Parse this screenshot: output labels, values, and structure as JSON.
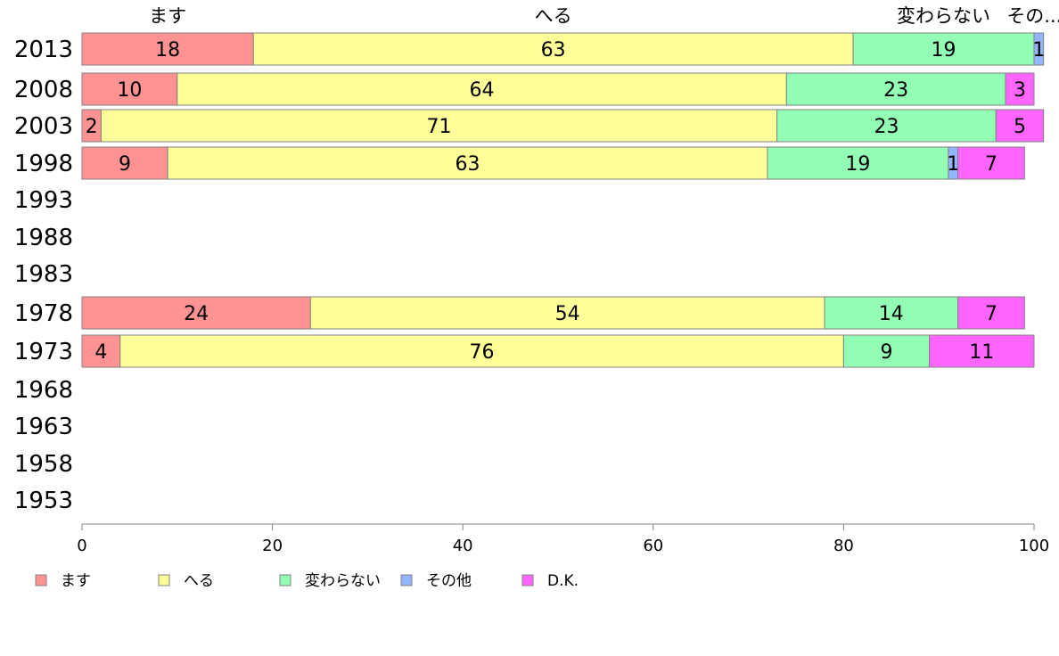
{
  "chart_data": {
    "type": "bar",
    "orientation": "horizontal",
    "stacked": true,
    "categories": [
      "2013",
      "2008",
      "2003",
      "1998",
      "1993",
      "1988",
      "1983",
      "1978",
      "1973",
      "1968",
      "1963",
      "1958",
      "1953"
    ],
    "series": [
      {
        "name": "ます",
        "color": "#ff9393",
        "values": [
          18,
          10,
          2,
          9,
          null,
          null,
          null,
          24,
          4,
          null,
          null,
          null,
          null
        ]
      },
      {
        "name": "へる",
        "color": "#ffff99",
        "values": [
          63,
          64,
          71,
          63,
          null,
          null,
          null,
          54,
          76,
          null,
          null,
          null,
          null
        ]
      },
      {
        "name": "変わらない",
        "color": "#93ffb4",
        "values": [
          19,
          23,
          23,
          19,
          null,
          null,
          null,
          14,
          9,
          null,
          null,
          null,
          null
        ]
      },
      {
        "name": "その他",
        "color": "#93b4ff",
        "values": [
          1,
          0,
          0,
          1,
          null,
          null,
          null,
          0,
          0,
          null,
          null,
          null,
          null
        ]
      },
      {
        "name": "D.K.",
        "color": "#ff66ff",
        "values": [
          0,
          3,
          5,
          7,
          null,
          null,
          null,
          7,
          11,
          null,
          null,
          null,
          null
        ]
      }
    ],
    "bar_labels": [
      [
        "18",
        "63",
        "19",
        "1",
        ""
      ],
      [
        "10",
        "64",
        "23",
        "",
        "3"
      ],
      [
        "2",
        "71",
        "23",
        "",
        "5"
      ],
      [
        "9",
        "63",
        "19",
        "1",
        "7"
      ],
      [],
      [],
      [],
      [
        "24",
        "54",
        "14",
        "",
        "7"
      ],
      [
        "4",
        "76",
        "9",
        "",
        "11"
      ],
      [],
      [],
      [],
      []
    ],
    "top_labels": [
      "ます",
      "へる",
      "変わらない",
      "その..."
    ],
    "xlim": [
      0,
      100
    ],
    "xticks": [
      0,
      20,
      40,
      60,
      80,
      100
    ],
    "grid": false,
    "legend_position": "bottom"
  }
}
